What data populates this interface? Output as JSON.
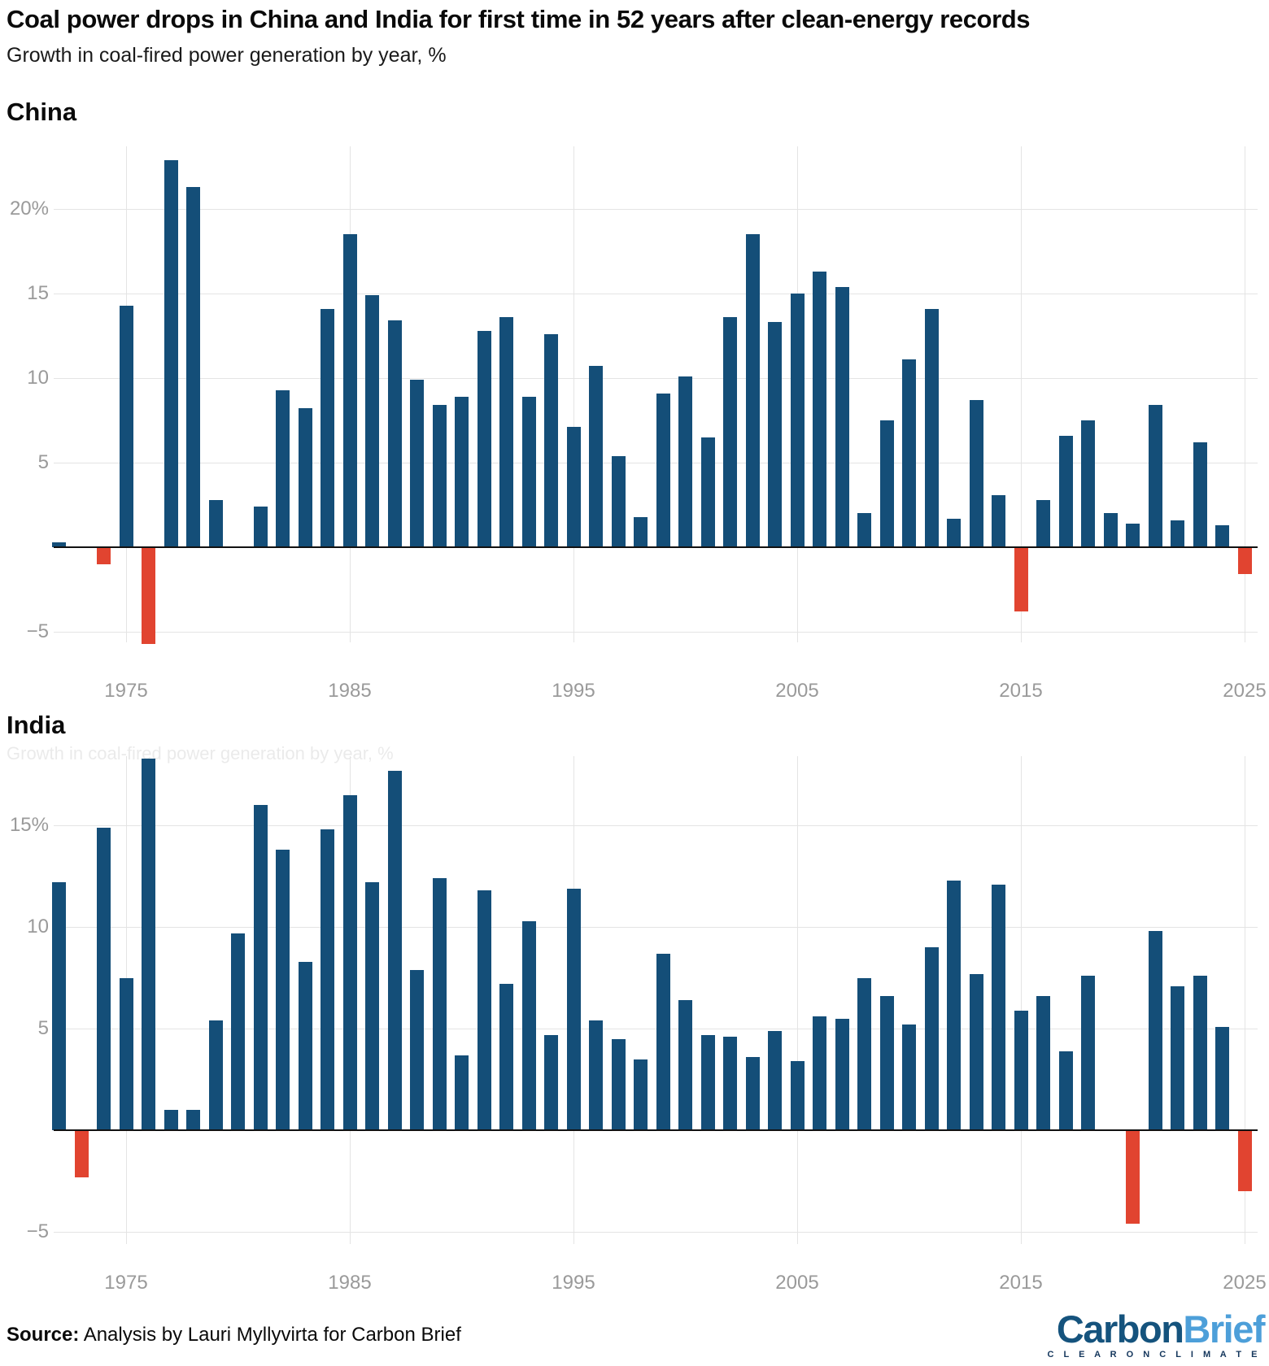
{
  "header": {
    "title": "Coal power drops in China and India for first time in 52 years after clean-energy records",
    "subtitle": "Growth in coal-fired power generation by year, %"
  },
  "colors": {
    "bar_positive": "#144e78",
    "bar_negative": "#e14430",
    "gridline": "#e4e4e4",
    "axis": "#111111",
    "tick_label": "#9a9a9a",
    "logo_carbon": "#15537d",
    "logo_brief": "#4d9fd9",
    "logo_tagline": "#14365c"
  },
  "chart_data": [
    {
      "type": "bar",
      "title": "China",
      "unit": "%",
      "x": [
        1972,
        1973,
        1974,
        1975,
        1976,
        1977,
        1978,
        1979,
        1980,
        1981,
        1982,
        1983,
        1984,
        1985,
        1986,
        1987,
        1988,
        1989,
        1990,
        1991,
        1992,
        1993,
        1994,
        1995,
        1996,
        1997,
        1998,
        1999,
        2000,
        2001,
        2002,
        2003,
        2004,
        2005,
        2006,
        2007,
        2008,
        2009,
        2010,
        2011,
        2012,
        2013,
        2014,
        2015,
        2016,
        2017,
        2018,
        2019,
        2020,
        2021,
        2022,
        2023,
        2024,
        2025
      ],
      "values": [
        0.3,
        0,
        -1.0,
        14.3,
        -5.7,
        22.9,
        21.3,
        2.8,
        0,
        2.4,
        9.3,
        8.2,
        14.1,
        18.5,
        14.9,
        13.4,
        9.9,
        8.4,
        8.9,
        12.8,
        13.6,
        8.9,
        12.6,
        7.1,
        10.7,
        5.4,
        1.8,
        9.1,
        10.1,
        6.5,
        13.6,
        18.5,
        13.3,
        15.0,
        16.3,
        15.4,
        2.0,
        7.5,
        11.1,
        14.1,
        1.7,
        8.7,
        3.1,
        -3.8,
        2.8,
        6.6,
        7.5,
        2.0,
        1.4,
        8.4,
        1.6,
        6.2,
        1.3,
        -1.6
      ],
      "yticks": [
        {
          "value": 20,
          "label": "20%"
        },
        {
          "value": 15,
          "label": "15"
        },
        {
          "value": 10,
          "label": "10"
        },
        {
          "value": 5,
          "label": "5"
        },
        {
          "value": -5,
          "label": "−5"
        }
      ],
      "xticks": [
        1975,
        1985,
        1995,
        2005,
        2015,
        2025
      ],
      "ylim": [
        -6.6,
        23.7
      ],
      "grid": true,
      "legend": "none"
    },
    {
      "type": "bar",
      "title": "India",
      "unit": "%",
      "x": [
        1972,
        1973,
        1974,
        1975,
        1976,
        1977,
        1978,
        1979,
        1980,
        1981,
        1982,
        1983,
        1984,
        1985,
        1986,
        1987,
        1988,
        1989,
        1990,
        1991,
        1992,
        1993,
        1994,
        1995,
        1996,
        1997,
        1998,
        1999,
        2000,
        2001,
        2002,
        2003,
        2004,
        2005,
        2006,
        2007,
        2008,
        2009,
        2010,
        2011,
        2012,
        2013,
        2014,
        2015,
        2016,
        2017,
        2018,
        2019,
        2020,
        2021,
        2022,
        2023,
        2024,
        2025
      ],
      "values": [
        12.2,
        -2.3,
        14.9,
        7.5,
        18.3,
        1.0,
        1.0,
        5.4,
        9.7,
        16.0,
        13.8,
        8.3,
        14.8,
        16.5,
        12.2,
        17.7,
        7.9,
        12.4,
        3.7,
        11.8,
        7.2,
        10.3,
        4.7,
        11.9,
        5.4,
        4.5,
        3.5,
        8.7,
        6.4,
        4.7,
        4.6,
        3.6,
        4.9,
        3.4,
        5.6,
        5.5,
        7.5,
        6.6,
        5.2,
        9.0,
        12.3,
        7.7,
        12.1,
        5.9,
        6.6,
        3.9,
        7.6,
        0,
        -4.6,
        9.8,
        7.1,
        7.6,
        5.1,
        -3.0
      ],
      "yticks": [
        {
          "value": 15,
          "label": "15%"
        },
        {
          "value": 10,
          "label": "10"
        },
        {
          "value": 5,
          "label": "5"
        },
        {
          "value": -5,
          "label": "−5"
        }
      ],
      "xticks": [
        1975,
        1985,
        1995,
        2005,
        2015,
        2025
      ],
      "ylim": [
        -5.6,
        18.4
      ],
      "grid": true,
      "legend": "none"
    }
  ],
  "footer": {
    "source_label": "Source:",
    "source_text": " Analysis by Lauri Myllyvirta for Carbon Brief",
    "logo_part1": "Carbon",
    "logo_part2": "Brief",
    "logo_tagline": "C L E A R   O N   C L I M A T E"
  }
}
